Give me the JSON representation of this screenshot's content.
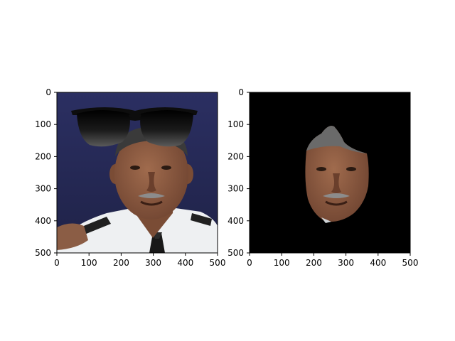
{
  "panels": [
    {
      "id": "left",
      "subject": "photo-with-sunglasses-overlay",
      "xticks": [
        "0",
        "100",
        "200",
        "300",
        "400",
        "500"
      ],
      "yticks": [
        "0",
        "100",
        "200",
        "300",
        "400",
        "500"
      ],
      "xlim": [
        0,
        500
      ],
      "ylim": [
        500,
        0
      ]
    },
    {
      "id": "right",
      "subject": "segmented-face-on-black",
      "xticks": [
        "0",
        "100",
        "200",
        "300",
        "400",
        "500"
      ],
      "yticks": [
        "0",
        "100",
        "200",
        "300",
        "400",
        "500"
      ],
      "xlim": [
        0,
        500
      ],
      "ylim": [
        500,
        0
      ]
    }
  ],
  "colors": {
    "backdrop": "#2a2d5c",
    "skin": "#8a5a3f",
    "uniform": "#eef0f2",
    "lens": "#111111",
    "mask_background": "#000000"
  }
}
